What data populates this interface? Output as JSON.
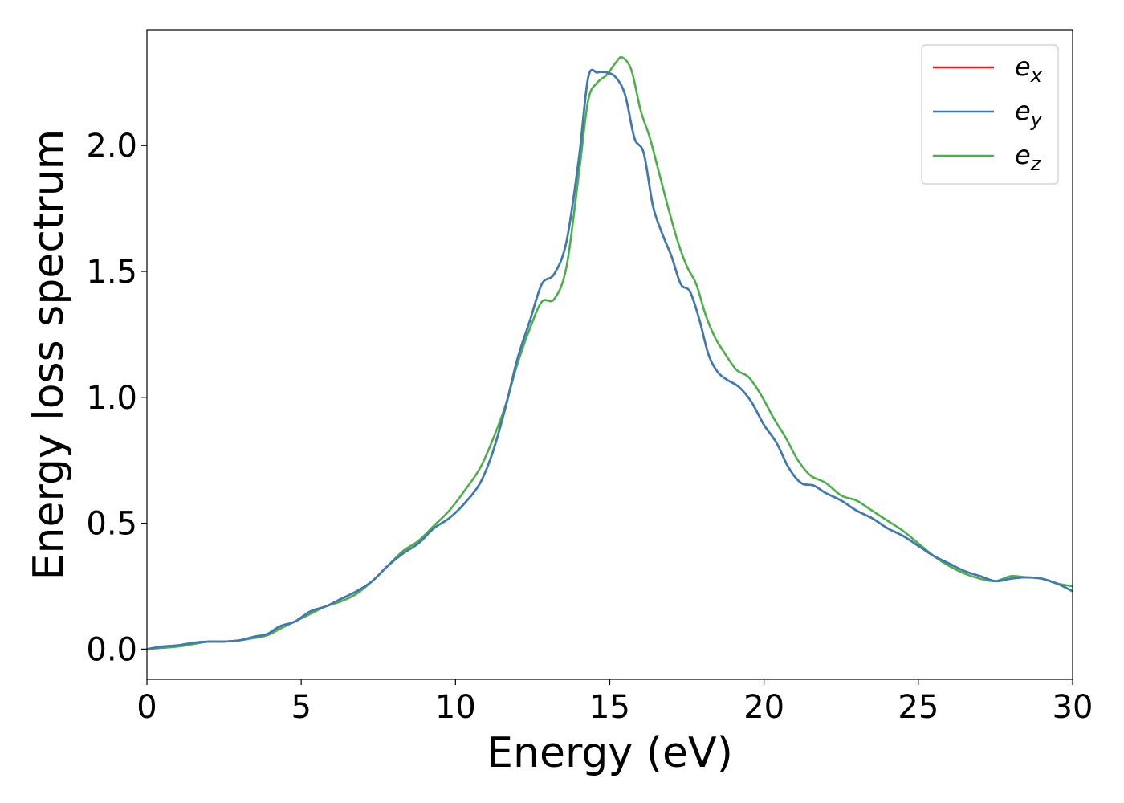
{
  "chart_data": {
    "type": "line",
    "title": "",
    "xlabel": "Energy (eV)",
    "ylabel": "Energy loss spectrum",
    "xlim": [
      0,
      30
    ],
    "ylim": [
      -0.12,
      2.46
    ],
    "xticks": [
      0,
      5,
      10,
      15,
      20,
      25,
      30
    ],
    "xtick_labels": [
      "0",
      "5",
      "10",
      "15",
      "20",
      "25",
      "30"
    ],
    "yticks": [
      0.0,
      0.5,
      1.0,
      1.5,
      2.0
    ],
    "ytick_labels": [
      "0.0",
      "0.5",
      "1.0",
      "1.5",
      "2.0"
    ],
    "grid": false,
    "legend": "top-right",
    "series": [
      {
        "name": "e",
        "subscript": "x",
        "color": "#e41a1c",
        "x": [
          0,
          0.5,
          1,
          1.5,
          2,
          2.5,
          3,
          3.5,
          3.9,
          4.3,
          4.8,
          5.3,
          5.8,
          6.3,
          6.8,
          7.3,
          7.8,
          8.3,
          8.8,
          9.3,
          9.8,
          10.3,
          10.8,
          11.2,
          11.6,
          12,
          12.4,
          12.8,
          13.2,
          13.6,
          14,
          14.3,
          14.6,
          14.9,
          15.2,
          15.5,
          15.8,
          16.1,
          16.4,
          16.7,
          17,
          17.3,
          17.6,
          17.9,
          18.2,
          18.5,
          18.8,
          19.2,
          19.6,
          20,
          20.4,
          20.8,
          21.2,
          21.6,
          22,
          22.5,
          23,
          23.5,
          24,
          24.5,
          25,
          25.5,
          26,
          26.5,
          27,
          27.5,
          28,
          28.5,
          29,
          29.5,
          30
        ],
        "y": [
          0,
          0.01,
          0.015,
          0.025,
          0.03,
          0.03,
          0.035,
          0.05,
          0.06,
          0.09,
          0.11,
          0.15,
          0.17,
          0.2,
          0.23,
          0.27,
          0.33,
          0.38,
          0.42,
          0.48,
          0.52,
          0.58,
          0.66,
          0.78,
          0.95,
          1.15,
          1.3,
          1.45,
          1.49,
          1.62,
          1.95,
          2.27,
          2.29,
          2.29,
          2.27,
          2.2,
          2.03,
          1.97,
          1.76,
          1.65,
          1.56,
          1.45,
          1.42,
          1.31,
          1.17,
          1.1,
          1.07,
          1.04,
          0.98,
          0.89,
          0.82,
          0.72,
          0.66,
          0.65,
          0.62,
          0.59,
          0.55,
          0.52,
          0.48,
          0.45,
          0.41,
          0.37,
          0.34,
          0.31,
          0.29,
          0.27,
          0.28,
          0.285,
          0.28,
          0.26,
          0.23
        ]
      },
      {
        "name": "e",
        "subscript": "y",
        "color": "#377eb8",
        "x": [
          0,
          0.5,
          1,
          1.5,
          2,
          2.5,
          3,
          3.5,
          3.9,
          4.3,
          4.8,
          5.3,
          5.8,
          6.3,
          6.8,
          7.3,
          7.8,
          8.3,
          8.8,
          9.3,
          9.8,
          10.3,
          10.8,
          11.2,
          11.6,
          12,
          12.4,
          12.8,
          13.2,
          13.6,
          14,
          14.3,
          14.6,
          14.9,
          15.2,
          15.5,
          15.8,
          16.1,
          16.4,
          16.7,
          17,
          17.3,
          17.6,
          17.9,
          18.2,
          18.5,
          18.8,
          19.2,
          19.6,
          20,
          20.4,
          20.8,
          21.2,
          21.6,
          22,
          22.5,
          23,
          23.5,
          24,
          24.5,
          25,
          25.5,
          26,
          26.5,
          27,
          27.5,
          28,
          28.5,
          29,
          29.5,
          30
        ],
        "y": [
          0,
          0.01,
          0.015,
          0.025,
          0.03,
          0.03,
          0.035,
          0.05,
          0.06,
          0.09,
          0.11,
          0.15,
          0.17,
          0.2,
          0.23,
          0.27,
          0.33,
          0.38,
          0.42,
          0.48,
          0.52,
          0.58,
          0.66,
          0.78,
          0.95,
          1.15,
          1.3,
          1.45,
          1.49,
          1.62,
          1.95,
          2.27,
          2.29,
          2.29,
          2.27,
          2.2,
          2.03,
          1.97,
          1.76,
          1.65,
          1.56,
          1.45,
          1.42,
          1.31,
          1.17,
          1.1,
          1.07,
          1.04,
          0.98,
          0.89,
          0.82,
          0.72,
          0.66,
          0.65,
          0.62,
          0.59,
          0.55,
          0.52,
          0.48,
          0.45,
          0.41,
          0.37,
          0.34,
          0.31,
          0.29,
          0.27,
          0.28,
          0.285,
          0.28,
          0.26,
          0.23
        ]
      },
      {
        "name": "e",
        "subscript": "z",
        "color": "#4daf4a",
        "x": [
          0,
          0.5,
          1,
          1.5,
          2,
          2.5,
          3,
          3.5,
          3.9,
          4.3,
          4.8,
          5.3,
          5.8,
          6.3,
          6.8,
          7.3,
          7.8,
          8.3,
          8.8,
          9.3,
          9.8,
          10.3,
          10.8,
          11.2,
          11.6,
          12,
          12.4,
          12.8,
          13.2,
          13.6,
          14,
          14.3,
          14.6,
          14.9,
          15.2,
          15.4,
          15.7,
          16,
          16.3,
          16.6,
          16.9,
          17.2,
          17.5,
          17.8,
          18.1,
          18.4,
          18.7,
          19.1,
          19.5,
          19.9,
          20.3,
          20.7,
          21.1,
          21.5,
          22,
          22.5,
          23,
          23.5,
          24,
          24.5,
          25,
          25.5,
          26,
          26.5,
          27,
          27.5,
          28,
          28.5,
          29,
          29.5,
          30
        ],
        "y": [
          0,
          0.005,
          0.01,
          0.02,
          0.03,
          0.03,
          0.035,
          0.045,
          0.055,
          0.08,
          0.11,
          0.14,
          0.17,
          0.19,
          0.22,
          0.27,
          0.33,
          0.39,
          0.43,
          0.49,
          0.55,
          0.63,
          0.72,
          0.83,
          0.96,
          1.13,
          1.27,
          1.38,
          1.39,
          1.52,
          1.89,
          2.18,
          2.25,
          2.28,
          2.33,
          2.35,
          2.3,
          2.14,
          2.03,
          1.89,
          1.75,
          1.62,
          1.52,
          1.45,
          1.33,
          1.24,
          1.18,
          1.11,
          1.08,
          1.01,
          0.92,
          0.84,
          0.75,
          0.69,
          0.66,
          0.61,
          0.59,
          0.55,
          0.51,
          0.47,
          0.42,
          0.37,
          0.33,
          0.3,
          0.28,
          0.27,
          0.29,
          0.285,
          0.28,
          0.26,
          0.25
        ]
      }
    ]
  }
}
